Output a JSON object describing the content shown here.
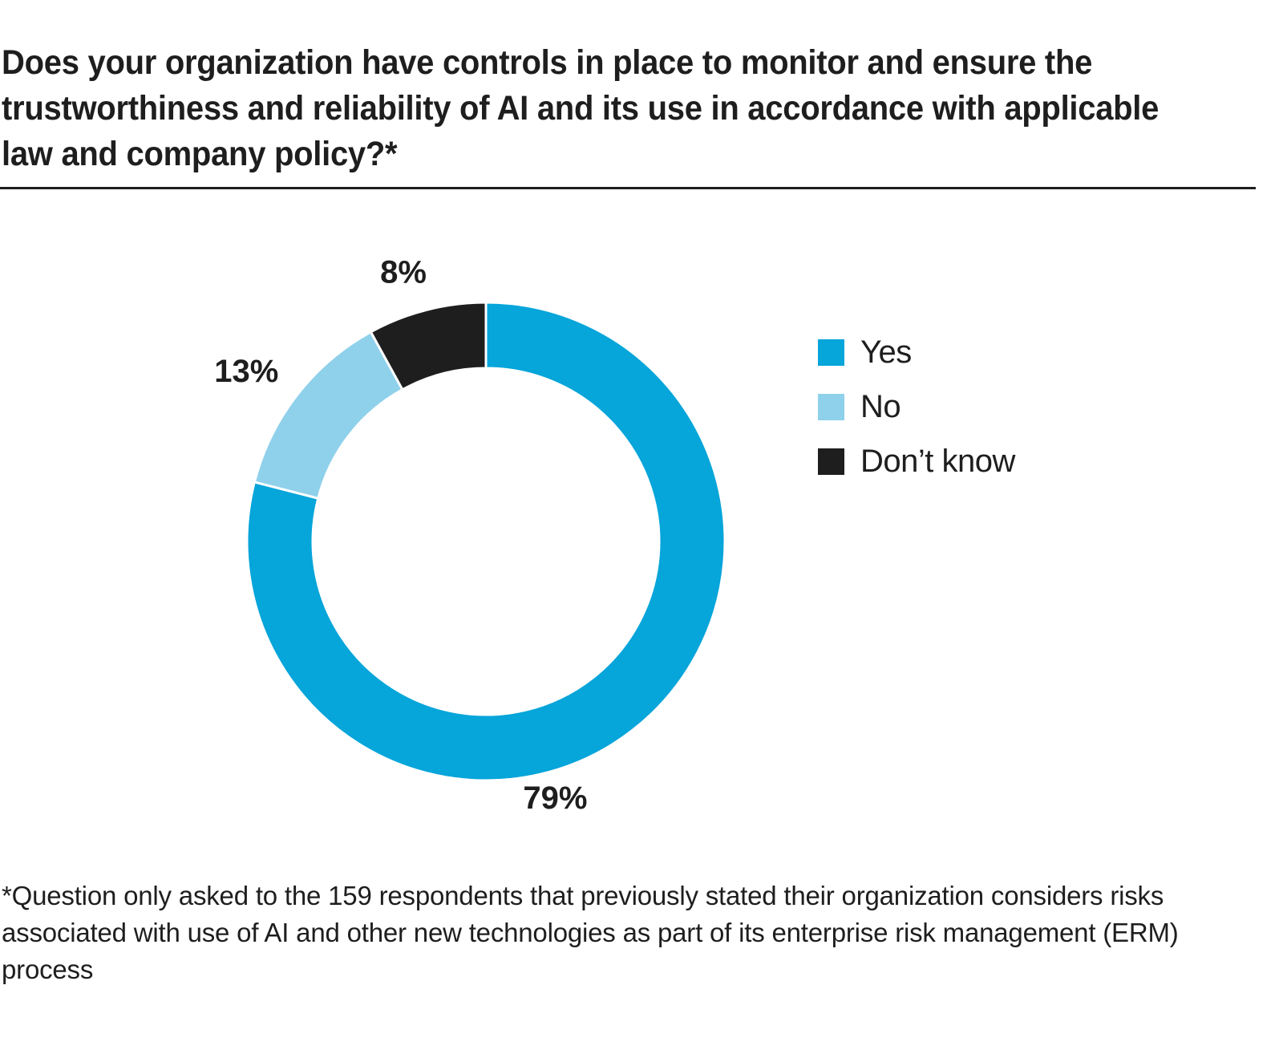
{
  "title": "Does your organization have controls in place to monitor and ensure the trustworthiness and reliability of AI and its use in accordance with applicable law and company policy?*",
  "footnote": "*Question only asked to the 159 respondents that previously stated their organization considers risks associated with use of AI and other new technologies as part of its enterprise risk management (ERM) process",
  "chart_data": {
    "type": "pie",
    "variant": "donut",
    "title": "Does your organization have controls in place to monitor and ensure the trustworthiness and reliability of AI and its use in accordance with applicable law and company policy?*",
    "categories": [
      "Yes",
      "No",
      "Don’t know"
    ],
    "values": [
      79,
      13,
      8
    ],
    "unit": "%",
    "data_labels": [
      "79%",
      "13%",
      "8%"
    ],
    "colors": [
      "#06a5da",
      "#8fd1eb",
      "#1e1e1e"
    ],
    "start_angle": "12 o'clock",
    "direction": "clockwise",
    "legend": {
      "position": "right",
      "entries": [
        "Yes",
        "No",
        "Don’t know"
      ]
    }
  },
  "legend": {
    "items": [
      {
        "label": "Yes",
        "color": "#06a5da"
      },
      {
        "label": "No",
        "color": "#8fd1eb"
      },
      {
        "label": "Don’t know",
        "color": "#1e1e1e"
      }
    ]
  }
}
